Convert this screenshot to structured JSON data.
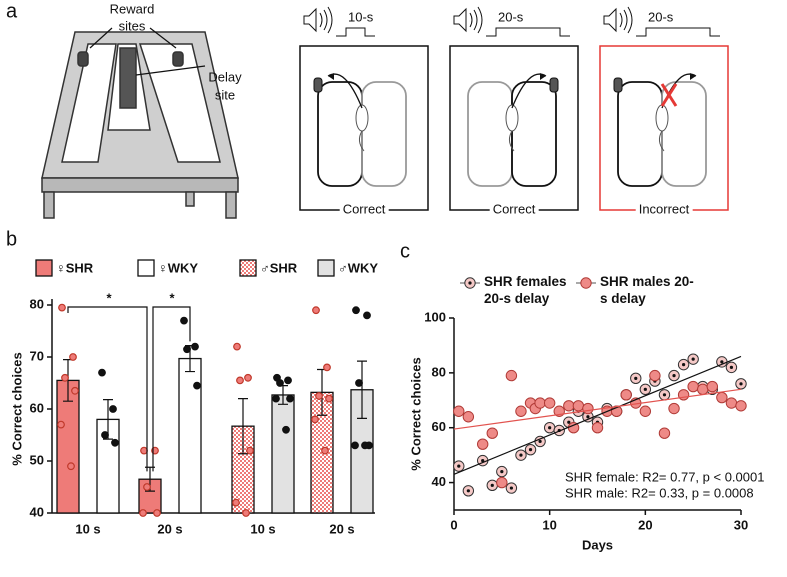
{
  "panel_labels": [
    "a",
    "b",
    "c"
  ],
  "apparatus": {
    "reward_label": [
      "Reward",
      "sites"
    ],
    "delay_label": [
      "Delay",
      "site"
    ]
  },
  "trials": [
    {
      "delay": "10-s",
      "outcome": "Correct"
    },
    {
      "delay": "20-s",
      "outcome": "Correct"
    },
    {
      "delay": "20-s",
      "outcome": "Incorrect"
    }
  ],
  "chart_data": [
    {
      "type": "bar",
      "y_label": "% Correct choices",
      "categories": [
        "10 s",
        "20 s",
        "10 s",
        "20 s"
      ],
      "ylim": [
        40,
        80
      ],
      "yticks": [
        40,
        50,
        60,
        70,
        80
      ],
      "annotations": [
        "*",
        "*"
      ],
      "series": [
        {
          "name": "♀SHR",
          "color": "#ee7b78",
          "point_color": "#ee7b78",
          "hatch": false,
          "values": [
            65.5,
            46.5,
            null,
            null
          ],
          "errors": [
            4,
            2.3,
            null,
            null
          ],
          "points": [
            [
              79.5,
              70,
              66,
              63.5,
              57,
              49
            ],
            [
              52,
              52,
              45,
              40,
              40
            ],
            null,
            null
          ]
        },
        {
          "name": "♀WKY",
          "color": "#ffffff",
          "point_color": "#111111",
          "hatch": false,
          "values": [
            58,
            69.7,
            null,
            null
          ],
          "errors": [
            3.8,
            2.5,
            null,
            null
          ],
          "points": [
            [
              67,
              60,
              55,
              53.5
            ],
            [
              77,
              72,
              71.5,
              64.5
            ],
            null,
            null
          ]
        },
        {
          "name": "♂SHR",
          "color": "#ee7b78",
          "point_color": "#ee7b78",
          "hatch": true,
          "values": [
            null,
            null,
            56.7,
            63.2
          ],
          "errors": [
            null,
            null,
            5.3,
            4.4
          ],
          "points": [
            null,
            null,
            [
              72,
              66,
              65.5,
              52,
              42,
              40
            ],
            [
              79,
              68,
              62.5,
              62,
              58,
              52
            ]
          ]
        },
        {
          "name": "♂WKY",
          "color": "#e2e2e2",
          "point_color": "#111111",
          "hatch": false,
          "values": [
            null,
            null,
            62.7,
            63.7
          ],
          "errors": [
            null,
            null,
            1.8,
            5.5
          ],
          "points": [
            null,
            null,
            [
              66,
              65.5,
              65,
              62,
              62,
              56
            ],
            [
              79,
              78,
              65,
              53,
              53,
              53
            ]
          ]
        }
      ]
    },
    {
      "type": "scatter",
      "x_label": "Days",
      "y_label": "% Correct choices",
      "xlim": [
        0,
        30
      ],
      "xticks": [
        0,
        10,
        20,
        30
      ],
      "ylim": [
        30,
        100
      ],
      "yticks": [
        40,
        60,
        80,
        100
      ],
      "annotations": [
        "SHR female: R2= 0.77, p < 0.0001",
        "SHR male: R2= 0.33, p = 0.0008"
      ],
      "series": [
        {
          "name": "SHR females 20-s delay",
          "color": "#f5c9c7",
          "line_color": "#111111",
          "dotted": true,
          "x": [
            0.5,
            1.5,
            3,
            4,
            5,
            6,
            7,
            8,
            9,
            10,
            11,
            12,
            13,
            14,
            15,
            16,
            17,
            18,
            19,
            20,
            21,
            22,
            23,
            24,
            25,
            26,
            27,
            28,
            29,
            30
          ],
          "values": [
            46,
            37,
            48,
            39,
            44,
            38,
            50,
            52,
            55,
            60,
            59,
            62,
            66,
            64,
            62,
            67,
            66,
            72,
            78,
            74,
            77,
            72,
            79,
            83,
            85,
            75,
            74,
            84,
            82,
            76
          ],
          "fit": {
            "x": [
              0,
              30
            ],
            "y": [
              43,
              86
            ]
          }
        },
        {
          "name": "SHR males 20-s delay",
          "color": "#ee8a87",
          "line_color": "#e2534f",
          "dotted": false,
          "x": [
            0.5,
            1.5,
            3,
            4,
            5,
            6,
            7,
            8,
            8.5,
            9,
            10,
            11,
            12,
            12.5,
            13,
            14,
            15,
            16,
            17,
            18,
            19,
            20,
            21,
            22,
            23,
            24,
            25,
            26,
            27,
            28,
            29,
            30
          ],
          "values": [
            66,
            64,
            54,
            58,
            40,
            79,
            66,
            69,
            67,
            69,
            69,
            66,
            68,
            60,
            68,
            67,
            60,
            66,
            66,
            72,
            69,
            66,
            79,
            58,
            67,
            72,
            75,
            74,
            75,
            71,
            69,
            68
          ],
          "fit": {
            "x": [
              0,
              30
            ],
            "y": [
              59.5,
              74
            ]
          }
        }
      ]
    }
  ]
}
